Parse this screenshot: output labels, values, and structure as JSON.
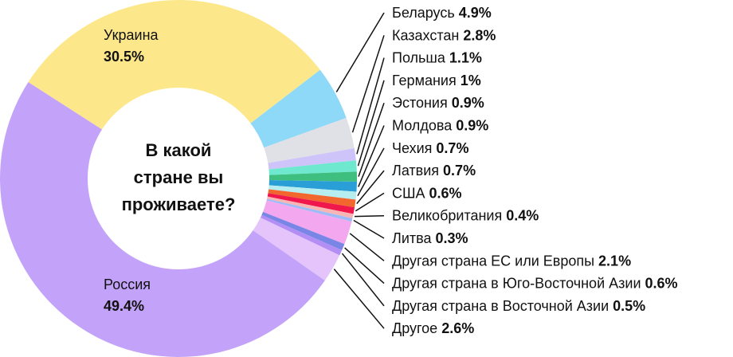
{
  "chart_data": {
    "type": "pie",
    "title": "В какой стране вы проживаете?",
    "title_lines": [
      "В какой",
      "стране вы",
      "проживаете?"
    ],
    "donut": true,
    "start_category": "Беларусь",
    "direction": "clockwise",
    "categories": [
      "Беларусь",
      "Казахстан",
      "Польша",
      "Германия",
      "Эстония",
      "Молдова",
      "Чехия",
      "Латвия",
      "США",
      "Великобритания",
      "Литва",
      "Другая страна ЕС или Европы",
      "Другая страна в Юго-Восточной Азии",
      "Другая страна в Восточной Азии",
      "Другое",
      "Россия",
      "Украина"
    ],
    "values": [
      4.9,
      2.8,
      1.1,
      1.0,
      0.9,
      0.9,
      0.7,
      0.7,
      0.6,
      0.4,
      0.3,
      2.1,
      0.6,
      0.5,
      2.6,
      49.4,
      30.5
    ],
    "value_labels": [
      "4.9%",
      "2.8%",
      "1.1%",
      "1%",
      "0.9%",
      "0.9%",
      "0.7%",
      "0.7%",
      "0.6%",
      "0.4%",
      "0.3%",
      "2.1%",
      "0.6%",
      "0.5%",
      "2.6%",
      "49.4%",
      "30.5%"
    ],
    "colors": [
      "#8ed8f8",
      "#dfe1e6",
      "#cfc4fa",
      "#6ee9cf",
      "#3fbf7f",
      "#2a9ed6",
      "#b6eef0",
      "#f2672d",
      "#f0174d",
      "#f9b4b4",
      "#9dbbf7",
      "#f2a7ee",
      "#7a86e6",
      "#b38ef4",
      "#e4c4fb",
      "#c3a3f9",
      "#fce88b"
    ],
    "labels_inside": [
      "Россия",
      "Украина"
    ],
    "legend_position": "right"
  }
}
